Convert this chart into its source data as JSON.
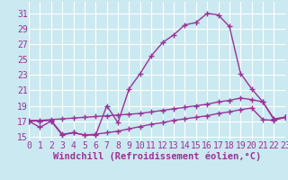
{
  "bg_color": "#cbe9f0",
  "line_color": "#993399",
  "grid_color": "#aad4dc",
  "xlabel": "Windchill (Refroidissement éolien,°C)",
  "x": [
    0,
    1,
    2,
    3,
    4,
    5,
    6,
    7,
    8,
    9,
    10,
    11,
    12,
    13,
    14,
    15,
    16,
    17,
    18,
    19,
    20,
    21,
    22,
    23
  ],
  "line1": [
    17.0,
    16.2,
    17.0,
    15.2,
    15.5,
    15.2,
    15.2,
    19.0,
    16.8,
    21.2,
    23.2,
    25.5,
    27.2,
    28.2,
    29.5,
    29.8,
    31.0,
    30.8,
    29.3,
    23.2,
    21.2,
    19.5,
    17.2,
    17.5
  ],
  "line2": [
    17.1,
    17.1,
    17.2,
    17.3,
    17.4,
    17.5,
    17.6,
    17.7,
    17.8,
    17.9,
    18.0,
    18.2,
    18.4,
    18.6,
    18.8,
    19.0,
    19.2,
    19.5,
    19.7,
    20.0,
    19.8,
    19.5,
    17.3,
    17.5
  ],
  "line3": [
    17.0,
    17.0,
    17.1,
    15.3,
    15.5,
    15.2,
    15.3,
    15.5,
    15.7,
    16.0,
    16.3,
    16.6,
    16.8,
    17.1,
    17.3,
    17.5,
    17.7,
    18.0,
    18.2,
    18.5,
    18.7,
    17.2,
    17.1,
    17.5
  ],
  "xlim": [
    0,
    23
  ],
  "ylim": [
    14.5,
    32.5
  ],
  "yticks": [
    15,
    17,
    19,
    21,
    23,
    25,
    27,
    29,
    31
  ],
  "xticks": [
    0,
    1,
    2,
    3,
    4,
    5,
    6,
    7,
    8,
    9,
    10,
    11,
    12,
    13,
    14,
    15,
    16,
    17,
    18,
    19,
    20,
    21,
    22,
    23
  ],
  "tick_fontsize": 7,
  "xlabel_fontsize": 7.5
}
